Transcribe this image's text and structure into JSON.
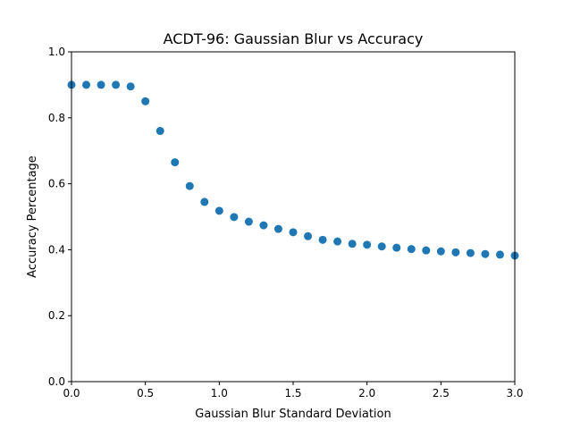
{
  "chart_data": {
    "type": "scatter",
    "title": "ACDT-96: Gaussian Blur vs Accuracy",
    "xlabel": "Gaussian Blur Standard Deviation",
    "ylabel": "Accuracy Percentage",
    "xlim": [
      0.0,
      3.0
    ],
    "ylim": [
      0.0,
      1.0
    ],
    "xticks": [
      "0.0",
      "0.5",
      "1.0",
      "1.5",
      "2.0",
      "2.5",
      "3.0"
    ],
    "yticks": [
      "0.0",
      "0.2",
      "0.4",
      "0.6",
      "0.8",
      "1.0"
    ],
    "grid": false,
    "marker_color": "#1f77b4",
    "x": [
      0.0,
      0.1,
      0.2,
      0.3,
      0.4,
      0.5,
      0.6,
      0.7,
      0.8,
      0.9,
      1.0,
      1.1,
      1.2,
      1.3,
      1.4,
      1.5,
      1.6,
      1.7,
      1.8,
      1.9,
      2.0,
      2.1,
      2.2,
      2.3,
      2.4,
      2.5,
      2.6,
      2.7,
      2.8,
      2.9,
      3.0
    ],
    "y": [
      0.9,
      0.9,
      0.9,
      0.9,
      0.895,
      0.85,
      0.76,
      0.665,
      0.593,
      0.545,
      0.518,
      0.499,
      0.485,
      0.474,
      0.463,
      0.453,
      0.441,
      0.43,
      0.425,
      0.418,
      0.415,
      0.41,
      0.406,
      0.402,
      0.398,
      0.395,
      0.392,
      0.39,
      0.387,
      0.385,
      0.382
    ]
  }
}
